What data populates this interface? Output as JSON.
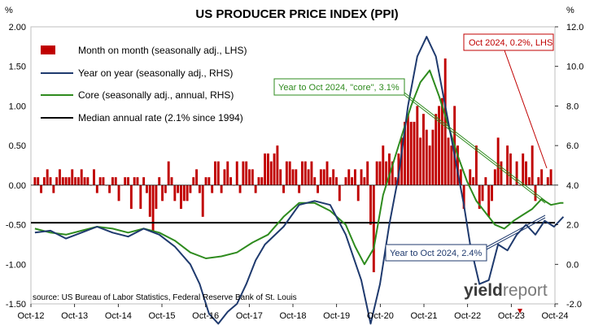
{
  "chart_data": {
    "type": "bar",
    "title": "US PRODUCER PRICE INDEX (PPI)",
    "left_unit": "%",
    "right_unit": "%",
    "left_axis": {
      "min": -1.5,
      "max": 2.0,
      "step": 0.5,
      "ticks": [
        "-1.50",
        "-1.00",
        "-0.50",
        "0.00",
        "0.50",
        "1.00",
        "1.50",
        "2.00"
      ]
    },
    "right_axis": {
      "min": -2.0,
      "max": 12.0,
      "step": 2.0,
      "ticks": [
        "-2.0",
        "0.0",
        "2.0",
        "4.0",
        "6.0",
        "8.0",
        "10.0",
        "12.0"
      ]
    },
    "x_ticks": [
      "Oct-12",
      "Oct-13",
      "Oct-14",
      "Oct-15",
      "Oct-16",
      "Oct-17",
      "Oct-18",
      "Oct-19",
      "Oct-20",
      "Oct-21",
      "Oct-22",
      "Oct-23",
      "Oct-24"
    ],
    "source": "source: US Bureau of Labor Statistics, Federal Reserve Bank of St. Louis",
    "brand": {
      "part1": "yield",
      "part2": "report"
    },
    "series": [
      {
        "name": "Month on month (seasonally adj., LHS)",
        "type": "bar",
        "axis": "left",
        "color": "#c00000",
        "values": [
          0.1,
          0.1,
          -0.1,
          0.1,
          0.2,
          0.1,
          -0.1,
          0.1,
          0.2,
          0.1,
          0.1,
          0.1,
          0.2,
          0.1,
          0.1,
          0.2,
          0.1,
          0.1,
          0.0,
          0.2,
          -0.1,
          0.1,
          0.1,
          0.0,
          -0.1,
          0.1,
          0.1,
          -0.2,
          0.0,
          0.1,
          0.1,
          -0.3,
          0.1,
          0.1,
          -0.3,
          0.1,
          -0.1,
          -0.4,
          -0.6,
          -0.3,
          0.1,
          -0.2,
          -0.1,
          0.3,
          0.1,
          -0.2,
          -0.1,
          -0.3,
          -0.2,
          -0.2,
          -0.1,
          0.1,
          0.2,
          -0.1,
          -0.4,
          0.1,
          0.1,
          -0.1,
          0.3,
          0.3,
          -0.1,
          0.2,
          0.3,
          0.1,
          0.0,
          0.3,
          -0.1,
          0.3,
          0.3,
          0.2,
          0.2,
          -0.1,
          0.1,
          0.1,
          0.4,
          0.4,
          0.3,
          0.4,
          0.5,
          0.2,
          -0.1,
          0.3,
          0.3,
          0.2,
          0.2,
          -0.1,
          0.3,
          0.3,
          0.2,
          0.3,
          0.1,
          -0.1,
          0.2,
          0.2,
          0.3,
          0.1,
          0.2,
          0.1,
          -0.2,
          0.0,
          0.1,
          0.2,
          0.1,
          0.2,
          -0.2,
          0.2,
          0.1,
          0.3,
          -0.5,
          -1.1,
          0.3,
          0.3,
          0.5,
          0.3,
          0.4,
          0.3,
          0.1,
          0.4,
          0.6,
          0.8,
          0.9,
          0.8,
          0.8,
          1.0,
          0.6,
          0.9,
          0.7,
          0.5,
          0.7,
          0.9,
          1.0,
          1.1,
          1.6,
          0.6,
          0.5,
          1.0,
          0.5,
          0.2,
          -0.3,
          0.0,
          0.2,
          0.1,
          0.5,
          -0.3,
          -0.2,
          0.1,
          -0.4,
          -0.2,
          0.2,
          0.6,
          0.3,
          0.0,
          0.5,
          0.4,
          0.0,
          0.3,
          0.0,
          0.4,
          0.3,
          0.1,
          0.5,
          -0.2,
          0.1,
          0.2,
          0.0,
          0.1,
          0.2
        ]
      },
      {
        "name": "Year on year (seasonally adj., RHS)",
        "type": "line",
        "axis": "right",
        "color": "#1f3a6e",
        "x": [
          0,
          5,
          10,
          15,
          20,
          25,
          30,
          35,
          40,
          45,
          50,
          53,
          56,
          59,
          62,
          65,
          68,
          71,
          74,
          80,
          85,
          90,
          95,
          100,
          105,
          108,
          111,
          114,
          117,
          120,
          123,
          126,
          129,
          132,
          135,
          138,
          140,
          143,
          146,
          149,
          152,
          155,
          158,
          161,
          164,
          167,
          170
        ],
        "values": [
          1.6,
          1.7,
          1.3,
          1.6,
          1.9,
          1.6,
          1.4,
          1.8,
          1.5,
          0.9,
          0.0,
          -1.0,
          -2.5,
          -3.0,
          -2.4,
          -2.0,
          -1.0,
          0.2,
          1.0,
          1.9,
          3.0,
          3.2,
          3.0,
          1.5,
          -0.8,
          -3.0,
          -1.0,
          2.0,
          4.5,
          8.0,
          10.5,
          11.5,
          10.5,
          8.0,
          5.5,
          3.0,
          1.0,
          -1.0,
          -0.8,
          1.0,
          0.7,
          1.5,
          2.0,
          1.5,
          2.2,
          1.9,
          2.4
        ]
      },
      {
        "name": "Core (seasonally adj., annual, RHS)",
        "type": "line",
        "axis": "right",
        "color": "#2e8b1e",
        "x": [
          0,
          5,
          10,
          15,
          20,
          25,
          30,
          35,
          40,
          45,
          50,
          55,
          60,
          65,
          70,
          75,
          80,
          85,
          90,
          95,
          100,
          103,
          106,
          109,
          112,
          115,
          118,
          121,
          124,
          127,
          130,
          133,
          136,
          139,
          142,
          145,
          148,
          151,
          154,
          157,
          160,
          163,
          166,
          169,
          170
        ],
        "values": [
          1.8,
          1.6,
          1.5,
          1.7,
          1.9,
          1.8,
          1.6,
          1.8,
          1.6,
          1.2,
          0.6,
          0.3,
          0.4,
          0.6,
          1.1,
          1.5,
          2.4,
          3.1,
          3.1,
          2.7,
          2.0,
          0.9,
          0.0,
          0.8,
          3.5,
          5.0,
          6.5,
          8.0,
          9.2,
          9.8,
          8.5,
          7.0,
          5.5,
          4.2,
          3.2,
          2.6,
          2.0,
          1.8,
          2.2,
          2.5,
          2.8,
          3.3,
          3.0,
          3.1,
          3.1
        ]
      },
      {
        "name": "Median annual rate (2.1% since 1994)",
        "type": "hline",
        "axis": "right",
        "color": "#000000",
        "value": 2.1
      }
    ],
    "annotations": [
      {
        "text": "Oct 2024, 0.2%, LHS",
        "color": "#c00000"
      },
      {
        "text": "Year to Oct 2024, \"core\", 3.1%",
        "color": "#2e8b1e"
      },
      {
        "text": "Year to Oct 2024, 2.4%",
        "color": "#1f3a6e"
      }
    ]
  }
}
